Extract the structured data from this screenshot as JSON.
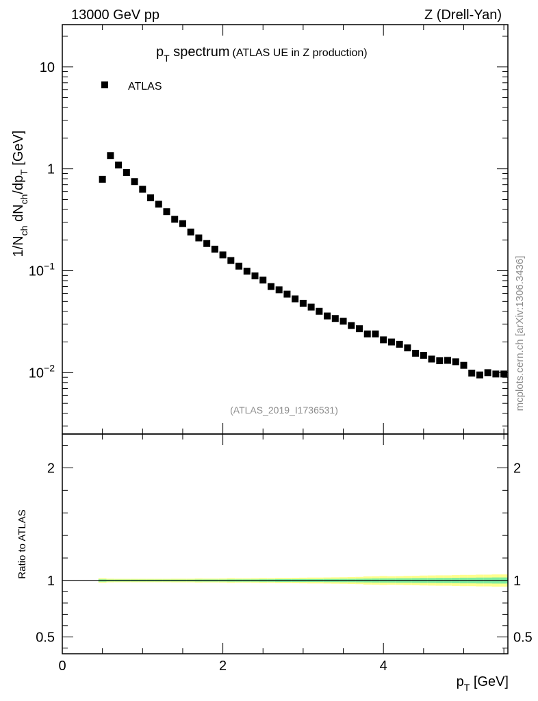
{
  "header": {
    "left": "13000 GeV pp",
    "right": "Z (Drell-Yan)"
  },
  "side_label": "mcplots.cern.ch [arXiv:1306.3436]",
  "chart_data": [
    {
      "type": "scatter",
      "title_main": "p",
      "title_sub": "T",
      "title_word": " spectrum",
      "title_extra": "(ATLAS UE in Z production)",
      "legend": {
        "entries": [
          "ATLAS"
        ],
        "placement": "top-left",
        "marker": "filled-square"
      },
      "analysis_label": "(ATLAS_2019_I1736531)",
      "ylabel_parts": {
        "a": "1/N",
        "b": "ch",
        "c": " dN",
        "d": "ch",
        "e": "/dp",
        "f": "T",
        "g": " [GeV]"
      },
      "yscale": "log",
      "ylim": [
        0.0025,
        26
      ],
      "xlim": [
        0,
        5.55
      ],
      "yticks": [
        {
          "value": 10,
          "label": "10"
        },
        {
          "value": 1,
          "label": "1"
        },
        {
          "value": 0.1,
          "base": "10",
          "exp": "−1"
        },
        {
          "value": 0.01,
          "base": "10",
          "exp": "−2"
        }
      ],
      "series": [
        {
          "name": "ATLAS",
          "color": "#000000",
          "x": [
            0.5,
            0.6,
            0.7,
            0.8,
            0.9,
            1.0,
            1.1,
            1.2,
            1.3,
            1.4,
            1.5,
            1.6,
            1.7,
            1.8,
            1.9,
            2.0,
            2.1,
            2.2,
            2.3,
            2.4,
            2.5,
            2.6,
            2.7,
            2.8,
            2.9,
            3.0,
            3.1,
            3.2,
            3.3,
            3.4,
            3.5,
            3.6,
            3.7,
            3.8,
            3.9,
            4.0,
            4.1,
            4.2,
            4.3,
            4.4,
            4.5,
            4.6,
            4.7,
            4.8,
            4.9,
            5.0,
            5.1,
            5.2,
            5.3,
            5.4,
            5.5
          ],
          "y": [
            0.79,
            1.35,
            1.09,
            0.92,
            0.75,
            0.63,
            0.52,
            0.45,
            0.38,
            0.32,
            0.29,
            0.24,
            0.21,
            0.185,
            0.163,
            0.143,
            0.126,
            0.111,
            0.099,
            0.089,
            0.081,
            0.07,
            0.065,
            0.059,
            0.053,
            0.048,
            0.044,
            0.04,
            0.036,
            0.034,
            0.032,
            0.029,
            0.027,
            0.024,
            0.024,
            0.021,
            0.02,
            0.019,
            0.0175,
            0.0155,
            0.0148,
            0.0136,
            0.0131,
            0.0132,
            0.0128,
            0.0118,
            0.0099,
            0.0095,
            0.01,
            0.0097,
            0.0097
          ]
        }
      ]
    },
    {
      "type": "area",
      "ylabel": "Ratio to ATLAS",
      "ylim": [
        0.35,
        2.3
      ],
      "xlim": [
        0,
        5.55
      ],
      "yticks": [
        {
          "value": 2,
          "label": "2"
        },
        {
          "value": 1,
          "label": "1"
        },
        {
          "value": 0.5,
          "label": "0.5"
        }
      ],
      "xticks": [
        {
          "value": 0,
          "label": "0"
        },
        {
          "value": 2,
          "label": "2"
        },
        {
          "value": 4,
          "label": "4"
        }
      ],
      "xlabel_main": "p",
      "xlabel_sub": "T",
      "xlabel_unit": " [GeV]",
      "reference": 1,
      "bands": {
        "x": [
          0.5,
          0.6,
          0.7,
          0.8,
          0.9,
          1.0,
          1.1,
          1.2,
          1.3,
          1.4,
          1.5,
          1.6,
          1.7,
          1.8,
          1.9,
          2.0,
          2.1,
          2.2,
          2.3,
          2.4,
          2.5,
          2.6,
          2.7,
          2.8,
          2.9,
          3.0,
          3.1,
          3.2,
          3.3,
          3.4,
          3.5,
          3.6,
          3.7,
          3.8,
          3.9,
          4.0,
          4.1,
          4.2,
          4.3,
          4.4,
          4.5,
          4.6,
          4.7,
          4.8,
          4.9,
          5.0,
          5.1,
          5.2,
          5.3,
          5.4,
          5.5
        ],
        "inner": [
          0.01,
          0.008,
          0.008,
          0.008,
          0.008,
          0.008,
          0.008,
          0.008,
          0.008,
          0.008,
          0.008,
          0.008,
          0.009,
          0.009,
          0.009,
          0.009,
          0.01,
          0.01,
          0.01,
          0.01,
          0.011,
          0.011,
          0.012,
          0.012,
          0.012,
          0.013,
          0.013,
          0.013,
          0.014,
          0.014,
          0.015,
          0.015,
          0.016,
          0.017,
          0.018,
          0.019,
          0.019,
          0.02,
          0.02,
          0.021,
          0.022,
          0.022,
          0.023,
          0.023,
          0.024,
          0.025,
          0.025,
          0.026,
          0.026,
          0.027,
          0.027
        ],
        "outer": [
          0.02,
          0.016,
          0.015,
          0.015,
          0.015,
          0.015,
          0.015,
          0.015,
          0.015,
          0.016,
          0.016,
          0.016,
          0.018,
          0.017,
          0.017,
          0.018,
          0.021,
          0.019,
          0.019,
          0.02,
          0.022,
          0.021,
          0.023,
          0.023,
          0.024,
          0.025,
          0.026,
          0.026,
          0.027,
          0.028,
          0.029,
          0.031,
          0.032,
          0.036,
          0.037,
          0.04,
          0.038,
          0.039,
          0.041,
          0.042,
          0.044,
          0.045,
          0.046,
          0.046,
          0.048,
          0.05,
          0.05,
          0.052,
          0.052,
          0.054,
          0.054
        ]
      },
      "colors": {
        "inner": "#7deba0",
        "outer": "#fefe8c"
      }
    }
  ]
}
